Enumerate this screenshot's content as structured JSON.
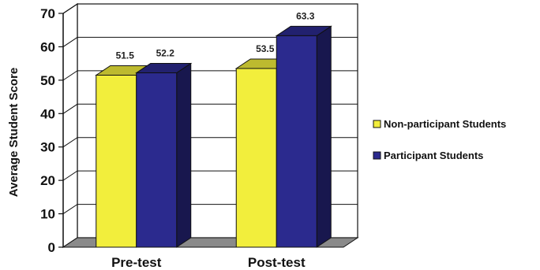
{
  "chart_data": {
    "type": "bar",
    "subtype": "3d-clustered",
    "categories": [
      "Pre-test",
      "Post-test"
    ],
    "series": [
      {
        "name": "Non-participant Students",
        "values": [
          51.5,
          53.5
        ],
        "color": "#f2ee3c"
      },
      {
        "name": "Participant Students",
        "values": [
          52.2,
          63.3
        ],
        "color": "#2b2a8e"
      }
    ],
    "data_labels": [
      [
        "51.5",
        "52.2"
      ],
      [
        "53.5",
        "63.3"
      ]
    ],
    "ylabel": "Average Student Score",
    "xlabel": "",
    "ylim": [
      0,
      70
    ],
    "yticks": [
      0,
      10,
      20,
      30,
      40,
      50,
      60,
      70
    ],
    "grid": true,
    "legend_position": "right"
  }
}
